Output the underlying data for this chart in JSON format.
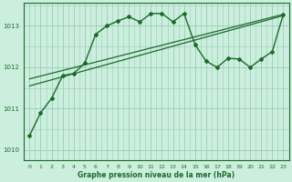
{
  "title": "Graphe pression niveau de la mer (hPa)",
  "background_color": "#cceedd",
  "grid_color": "#99ccbb",
  "line_color": "#1a6b2a",
  "xlim": [
    -0.5,
    23.5
  ],
  "ylim": [
    1009.75,
    1013.55
  ],
  "xticks": [
    0,
    1,
    2,
    3,
    4,
    5,
    6,
    7,
    8,
    9,
    10,
    11,
    12,
    13,
    14,
    15,
    16,
    17,
    18,
    19,
    20,
    21,
    22,
    23
  ],
  "yticks": [
    1010,
    1011,
    1012,
    1013
  ],
  "series_main": {
    "x": [
      0,
      1,
      2,
      3,
      4,
      5,
      6,
      7,
      8,
      9,
      10,
      11,
      12,
      13,
      14,
      15,
      16,
      17,
      18,
      19,
      20,
      21,
      22,
      23
    ],
    "y": [
      1010.35,
      1010.9,
      1011.25,
      1011.8,
      1011.85,
      1012.1,
      1012.8,
      1013.0,
      1013.12,
      1013.22,
      1013.1,
      1013.3,
      1013.3,
      1013.1,
      1013.3,
      1012.55,
      1012.15,
      1012.0,
      1012.22,
      1012.2,
      1012.0,
      1012.2,
      1012.38,
      1013.28
    ],
    "marker": "D",
    "markersize": 2.0,
    "linewidth": 1.0
  },
  "series_line1": {
    "x": [
      0,
      23
    ],
    "y": [
      1011.72,
      1013.28
    ],
    "linewidth": 0.9
  },
  "series_line2": {
    "x": [
      0,
      23
    ],
    "y": [
      1011.55,
      1013.25
    ],
    "linewidth": 0.9
  }
}
